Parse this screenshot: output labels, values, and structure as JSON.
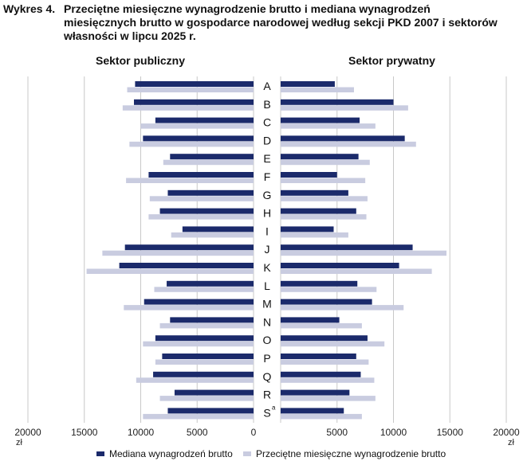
{
  "title": {
    "number": "Wykres 4.",
    "line1": "Przeciętne miesięczne wynagrodzenie brutto i mediana wynagrodzeń",
    "line2": "miesięcznych brutto w gospodarce narodowej według sekcji PKD 2007 i sektorów",
    "line3": "własności w lipcu 2025 r."
  },
  "sectors": {
    "left": "Sektor publiczny",
    "right": "Sektor prywatny"
  },
  "legend": {
    "median": "Mediana wynagrodzeń brutto",
    "average": "Przeciętne miesięczne wynagrodzenie brutto"
  },
  "colors": {
    "median": "#1b2a6b",
    "average": "#c9cce0",
    "grid": "#c8c8c8"
  },
  "chart_data": {
    "type": "bar",
    "orientation": "horizontal",
    "layout": "back-to-back",
    "categories": [
      "A",
      "B",
      "C",
      "D",
      "E",
      "F",
      "G",
      "H",
      "I",
      "J",
      "K",
      "L",
      "M",
      "N",
      "O",
      "P",
      "Q",
      "R",
      "S"
    ],
    "category_superscripts": {
      "S": "a"
    },
    "panels": [
      {
        "name": "Sektor publiczny",
        "direction": "left",
        "series": [
          {
            "name": "Mediana wynagrodzeń brutto",
            "values": [
              10500,
              10600,
              8700,
              9800,
              7400,
              9300,
              7600,
              8300,
              6300,
              11400,
              11900,
              7700,
              9700,
              7400,
              8700,
              8100,
              8900,
              7000,
              7600
            ]
          },
          {
            "name": "Przeciętne miesięczne wynagrodzenie brutto",
            "values": [
              11200,
              11600,
              10000,
              11000,
              8000,
              11300,
              9200,
              9300,
              7300,
              13400,
              14800,
              8800,
              11500,
              8300,
              9800,
              8700,
              10400,
              8300,
              9800
            ]
          }
        ]
      },
      {
        "name": "Sektor prywatny",
        "direction": "right",
        "series": [
          {
            "name": "Mediana wynagrodzeń brutto",
            "values": [
              4800,
              10000,
              7000,
              11000,
              6900,
              5000,
              6000,
              6700,
              4700,
              11700,
              10500,
              6800,
              8100,
              5200,
              7700,
              6700,
              7100,
              6100,
              5600
            ]
          },
          {
            "name": "Przeciętne miesięczne wynagrodzenie brutto",
            "values": [
              6500,
              11300,
              8400,
              12000,
              7900,
              7500,
              7700,
              7600,
              6000,
              14700,
              13400,
              8500,
              10900,
              7200,
              9200,
              7800,
              8300,
              8400,
              7200
            ]
          }
        ]
      }
    ],
    "x_ticks_left": [
      "20000",
      "15000",
      "10000",
      "5000",
      "0"
    ],
    "x_ticks_right": [
      "5000",
      "10000",
      "15000",
      "20000"
    ],
    "x_unit": "zł",
    "xlim": [
      0,
      20000
    ]
  }
}
